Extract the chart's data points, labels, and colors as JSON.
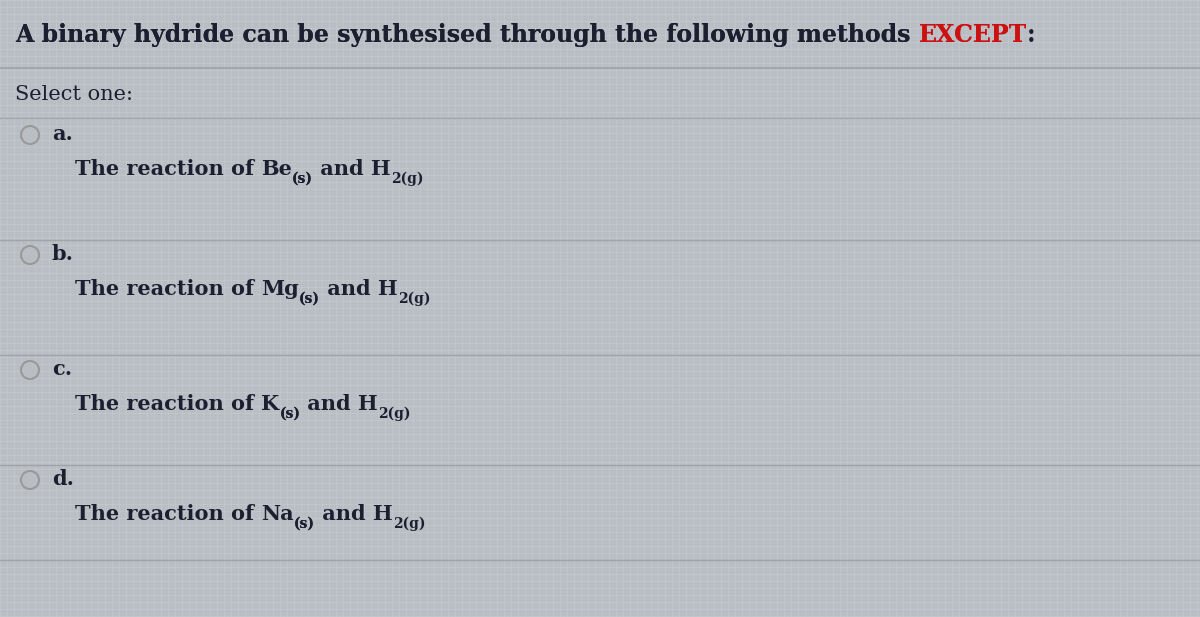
{
  "bg_color": "#b8bec4",
  "grid_color": "#c5cace",
  "title_normal": "A binary hydride can be synthesised through the following methods ",
  "title_bold": "EXCEPT",
  "title_colon": ":",
  "title_fontsize": 17,
  "title_bold_color": "#cc1111",
  "title_normal_color": "#1a2030",
  "select_text": "Select one:",
  "select_fontsize": 15,
  "options": [
    {
      "letter": "a.",
      "element": "Be",
      "prefix": "The reaction of ",
      "suffix": " and H"
    },
    {
      "letter": "b.",
      "element": "Mg",
      "prefix": "The reaction of ",
      "suffix": " and H"
    },
    {
      "letter": "c.",
      "element": "K",
      "prefix": "The reaction of ",
      "suffix": " and H"
    },
    {
      "letter": "d.",
      "element": "Na",
      "prefix": "The reaction of ",
      "suffix": " and H"
    }
  ],
  "option_fontsize": 15,
  "sub_fontsize": 10,
  "letter_fontsize": 15,
  "text_color": "#1a2030",
  "circle_color": "#999999",
  "line_color": "#b0b4b8",
  "sep_color": "#a0a4a8"
}
